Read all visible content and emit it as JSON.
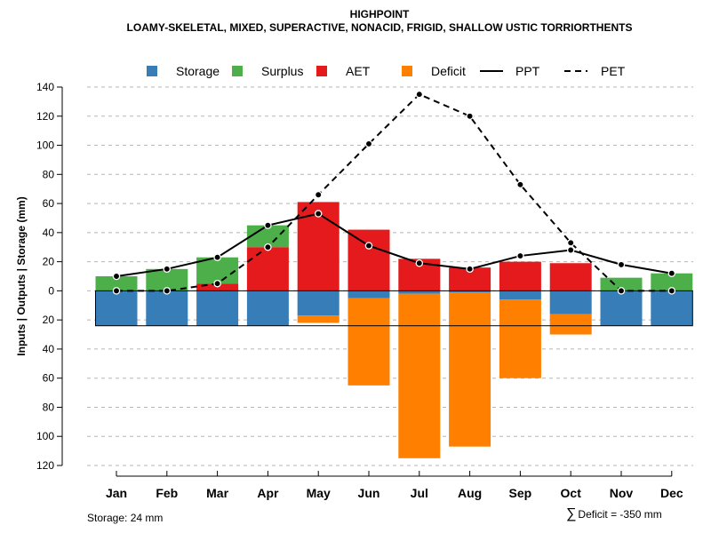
{
  "chart_data": {
    "type": "bar",
    "title": "HIGHPOINT",
    "subtitle": "LOAMY-SKELETAL, MIXED, SUPERACTIVE, NONACID, FRIGID, SHALLOW USTIC TORRIORTHENTS",
    "ylabel": "Inputs | Outputs | Storage    (mm)",
    "categories": [
      "Jan",
      "Feb",
      "Mar",
      "Apr",
      "May",
      "Jun",
      "Jul",
      "Aug",
      "Sep",
      "Oct",
      "Nov",
      "Dec"
    ],
    "ylim": [
      -120,
      140
    ],
    "yticks": [
      140,
      120,
      100,
      80,
      60,
      40,
      20,
      0,
      -20,
      -40,
      -60,
      -80,
      -100,
      -120
    ],
    "ytick_labels": [
      "140",
      "120",
      "100",
      "80",
      "60",
      "40",
      "20",
      "0",
      "20",
      "40",
      "60",
      "80",
      "100",
      "120"
    ],
    "grid": true,
    "legend_position": "top",
    "storage_capacity": 24,
    "series": [
      {
        "name": "Storage",
        "color": "#377EB8",
        "values": [
          -24,
          -24,
          -24,
          -24,
          -17,
          -5,
          -2,
          -1,
          -6,
          -16,
          -24,
          -24
        ]
      },
      {
        "name": "Surplus",
        "color": "#4DAF4A",
        "values": [
          10,
          15,
          18,
          15,
          0,
          0,
          0,
          0,
          0,
          0,
          9,
          12
        ]
      },
      {
        "name": "AET",
        "color": "#E41A1C",
        "values": [
          0,
          0,
          5,
          30,
          61,
          42,
          22,
          16,
          20,
          19,
          0,
          0
        ]
      },
      {
        "name": "Deficit",
        "color": "#FF7F00",
        "values": [
          0,
          0,
          0,
          0,
          -5,
          -60,
          -113,
          -106,
          -54,
          -14,
          0,
          0
        ]
      },
      {
        "name": "PPT",
        "color": "#000000",
        "style": "solid",
        "values": [
          10,
          15,
          23,
          45,
          53,
          31,
          19,
          15,
          24,
          28,
          18,
          12
        ]
      },
      {
        "name": "PET",
        "color": "#000000",
        "style": "dashed",
        "values": [
          0,
          0,
          5,
          30,
          66,
          101,
          135,
          120,
          73,
          33,
          0,
          0
        ]
      }
    ],
    "storage_note": "Storage: 24 mm",
    "deficit_note": "Deficit = -350 mm",
    "deficit_symbol": "∑"
  }
}
